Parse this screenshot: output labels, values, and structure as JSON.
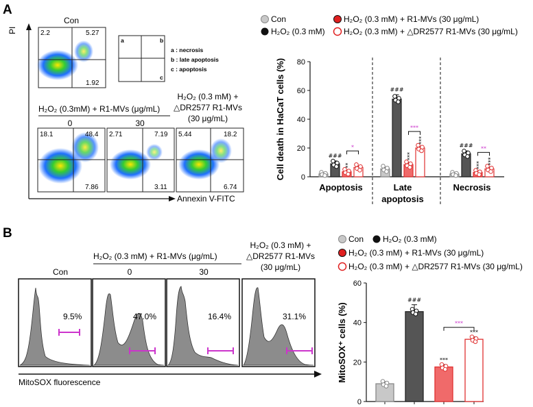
{
  "colors": {
    "con": "#c8c8c8",
    "h2o2": "#555555",
    "r1": "#f06a6a",
    "dr": "#ffffff",
    "r1_stroke": "#e03030",
    "dr_stroke": "#e03030",
    "purple": "#cc33cc"
  },
  "panelA": {
    "letter": "A",
    "con_title": "Con",
    "pi_label": "PI",
    "annexin_label": "Annexin V-FITC",
    "con_quadrants": {
      "ul": "2.2",
      "ur": "5.27",
      "lr": "1.92"
    },
    "key": {
      "a": "a",
      "b": "b",
      "c": "c",
      "legend_a": "a : necrosis",
      "legend_b": "b : late apoptosis",
      "legend_c": "c : apoptosis"
    },
    "group_header": "H₂O₂ (0.3mM) + R1-MVs (μg/mL)",
    "dose0": "0",
    "dose30": "30",
    "dr_header_line1": "H₂O₂ (0.3 mM) +",
    "dr_header_line2": "△DR2577 R1-MVs",
    "dr_header_line3": "(30 μg/mL)",
    "plot0": {
      "ul": "18.1",
      "ur": "48.4",
      "lr": "7.86"
    },
    "plot30": {
      "ul": "2.71",
      "ur": "7.19",
      "lr": "3.11"
    },
    "plotdr": {
      "ul": "5.44",
      "ur": "18.2",
      "lr": "6.74"
    }
  },
  "legendA": {
    "con": "Con",
    "h2o2": "H₂O₂ (0.3 mM)",
    "r1": "H₂O₂ (0.3 mM) + R1-MVs (30 μg/mL)",
    "dr": "H₂O₂ (0.3 mM) + △DR2577 R1-MVs (30 μg/mL)"
  },
  "panelB": {
    "letter": "B",
    "con": "Con",
    "group_header": "H₂O₂ (0.3 mM) + R1-MVs (μg/mL)",
    "dose0": "0",
    "dose30": "30",
    "dr_header_line1": "H₂O₂ (0.3 mM) +",
    "dr_header_line2": "△DR2577 R1-MVs",
    "dr_header_line3": "(30 μg/mL)",
    "pct_con": "9.5%",
    "pct_0": "47.0%",
    "pct_30": "16.4%",
    "pct_dr": "31.1%",
    "xaxis": "MitoSOX fluorescence"
  },
  "legendB": {
    "con": "Con",
    "h2o2": "H₂O₂ (0.3 mM)",
    "r1": "H₂O₂ (0.3 mM) + R1-MVs (30 μg/mL)",
    "dr": "H₂O₂ (0.3 mM) + △DR2577 R1-MVs (30 μg/mL)"
  },
  "chart_data": [
    {
      "type": "bar",
      "ylabel": "Cell death in HaCaT cells (%)",
      "ylim": [
        0,
        80
      ],
      "yticks": [
        0,
        20,
        40,
        60,
        80
      ],
      "categories": [
        "Apoptosis",
        "Late apoptosis",
        "Necrosis"
      ],
      "category_lines": [
        [
          "Apoptosis"
        ],
        [
          "Late",
          "apoptosis"
        ],
        [
          "Necrosis"
        ]
      ],
      "series": [
        {
          "name": "Con",
          "values": [
            2,
            5.5,
            2
          ],
          "errors": [
            0.6,
            1,
            0.6
          ]
        },
        {
          "name": "H2O2 (0.3 mM)",
          "values": [
            9,
            54,
            16
          ],
          "errors": [
            2,
            3,
            2
          ],
          "labels": [
            "###",
            "###",
            "###"
          ]
        },
        {
          "name": "H2O2 (0.3 mM) + R1-MVs (30 μg/mL)",
          "values": [
            3.5,
            8.5,
            3
          ],
          "errors": [
            1,
            1.5,
            0.8
          ],
          "labels": [
            "**",
            "***",
            "***"
          ]
        },
        {
          "name": "H2O2 (0.3 mM) + △DR2577 R1-MVs (30 μg/mL)",
          "values": [
            6.5,
            20,
            5.5
          ],
          "errors": [
            1,
            1,
            1
          ],
          "labels": [
            "",
            "***",
            "***"
          ]
        }
      ],
      "brackets": [
        "*",
        "***",
        "**"
      ]
    },
    {
      "type": "bar",
      "ylabel": "MitoSOX⁺ cells (%)",
      "ylim": [
        0,
        60
      ],
      "yticks": [
        0,
        20,
        40,
        60
      ],
      "categories": [
        "Con",
        "H2O2",
        "R1-MVs",
        "△DR2577"
      ],
      "values": [
        9,
        45.5,
        17.5,
        31.5
      ],
      "errors": [
        1,
        3.5,
        1.2,
        1.2
      ],
      "labels": [
        "",
        "###",
        "***",
        "***"
      ],
      "bracket": "***"
    }
  ]
}
